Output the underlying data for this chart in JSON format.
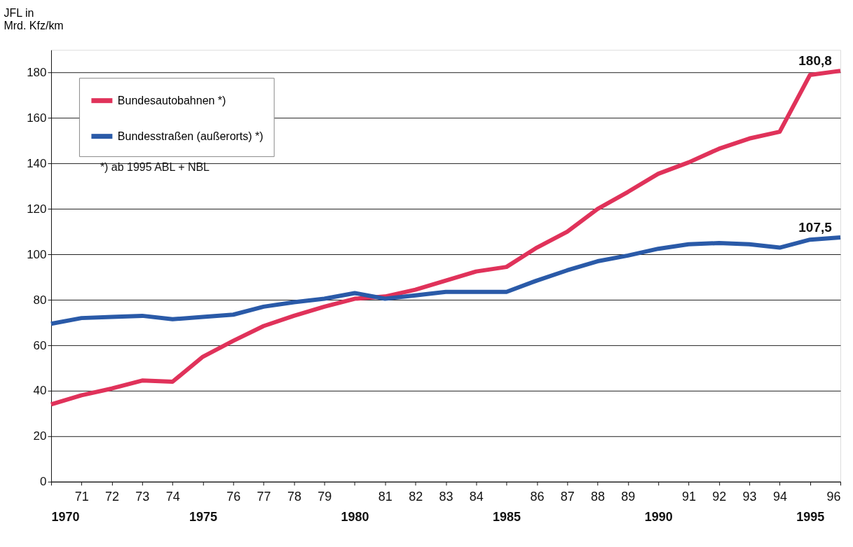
{
  "chart_data": {
    "type": "line",
    "ylabel": "JFL in\nMrd. Kfz/km",
    "x": [
      1970,
      1971,
      1972,
      1973,
      1974,
      1975,
      1976,
      1977,
      1978,
      1979,
      1980,
      1981,
      1982,
      1983,
      1984,
      1985,
      1986,
      1987,
      1988,
      1989,
      1990,
      1991,
      1992,
      1993,
      1994,
      1995,
      1996
    ],
    "series": [
      {
        "name": "Bundesautobahnen *)",
        "color": "#e0325a",
        "values": [
          34,
          38,
          41,
          44.5,
          44,
          55,
          62,
          68.5,
          73,
          77,
          80.5,
          81.5,
          84.5,
          88.5,
          92.5,
          94.5,
          103,
          110,
          120,
          127.5,
          135.5,
          140.5,
          146.5,
          151,
          154,
          179,
          180.8
        ],
        "value_labels": [
          null,
          null,
          null,
          null,
          null,
          null,
          null,
          null,
          null,
          null,
          null,
          null,
          null,
          null,
          null,
          null,
          null,
          null,
          null,
          null,
          null,
          null,
          null,
          null,
          null,
          null,
          "180,8"
        ]
      },
      {
        "name": "Bundesstraßen (außerorts) *)",
        "color": "#2a5aa8",
        "values": [
          69.5,
          72,
          72.5,
          73,
          71.5,
          72.5,
          73.5,
          77,
          79,
          80.5,
          83,
          80.5,
          82,
          83.5,
          83.5,
          83.5,
          88.5,
          93,
          97,
          99.5,
          102.5,
          104.5,
          105,
          104.5,
          103,
          106.5,
          107.5
        ],
        "value_labels": [
          null,
          null,
          null,
          null,
          null,
          null,
          null,
          null,
          null,
          null,
          null,
          null,
          null,
          null,
          null,
          null,
          null,
          null,
          null,
          null,
          null,
          null,
          null,
          null,
          null,
          null,
          "107,5"
        ]
      }
    ],
    "xlim": [
      1970,
      1996
    ],
    "x2lim": [
      1970,
      1996
    ],
    "x2ticks": [
      1970,
      1975,
      1980,
      1985,
      1990,
      1995
    ],
    "xticks": [
      {
        "value": 1970,
        "label": null
      },
      {
        "value": 1971,
        "label": "71"
      },
      {
        "value": 1972,
        "label": "72"
      },
      {
        "value": 1973,
        "label": "73"
      },
      {
        "value": 1974,
        "label": "74"
      },
      {
        "value": 1975,
        "label": null
      },
      {
        "value": 1976,
        "label": "76"
      },
      {
        "value": 1977,
        "label": "77"
      },
      {
        "value": 1978,
        "label": "78"
      },
      {
        "value": 1979,
        "label": "79"
      },
      {
        "value": 1980,
        "label": null
      },
      {
        "value": 1981,
        "label": "81"
      },
      {
        "value": 1982,
        "label": "82"
      },
      {
        "value": 1983,
        "label": "83"
      },
      {
        "value": 1984,
        "label": "84"
      },
      {
        "value": 1985,
        "label": null
      },
      {
        "value": 1986,
        "label": "86"
      },
      {
        "value": 1987,
        "label": "87"
      },
      {
        "value": 1988,
        "label": "88"
      },
      {
        "value": 1989,
        "label": "89"
      },
      {
        "value": 1990,
        "label": null
      },
      {
        "value": 1991,
        "label": "91"
      },
      {
        "value": 1992,
        "label": "92"
      },
      {
        "value": 1993,
        "label": "93"
      },
      {
        "value": 1994,
        "label": "94"
      },
      {
        "value": 1995,
        "label": null
      },
      {
        "value": 1996,
        "label": "96"
      }
    ],
    "ylim": [
      0,
      190
    ],
    "yticks": [
      0,
      20,
      40,
      60,
      80,
      100,
      120,
      140,
      160,
      180
    ],
    "grid": "y",
    "legend": "top left",
    "marker": "none",
    "line_style": "solid",
    "annotations": [
      "*)  ab 1995 ABL + NBL"
    ]
  }
}
